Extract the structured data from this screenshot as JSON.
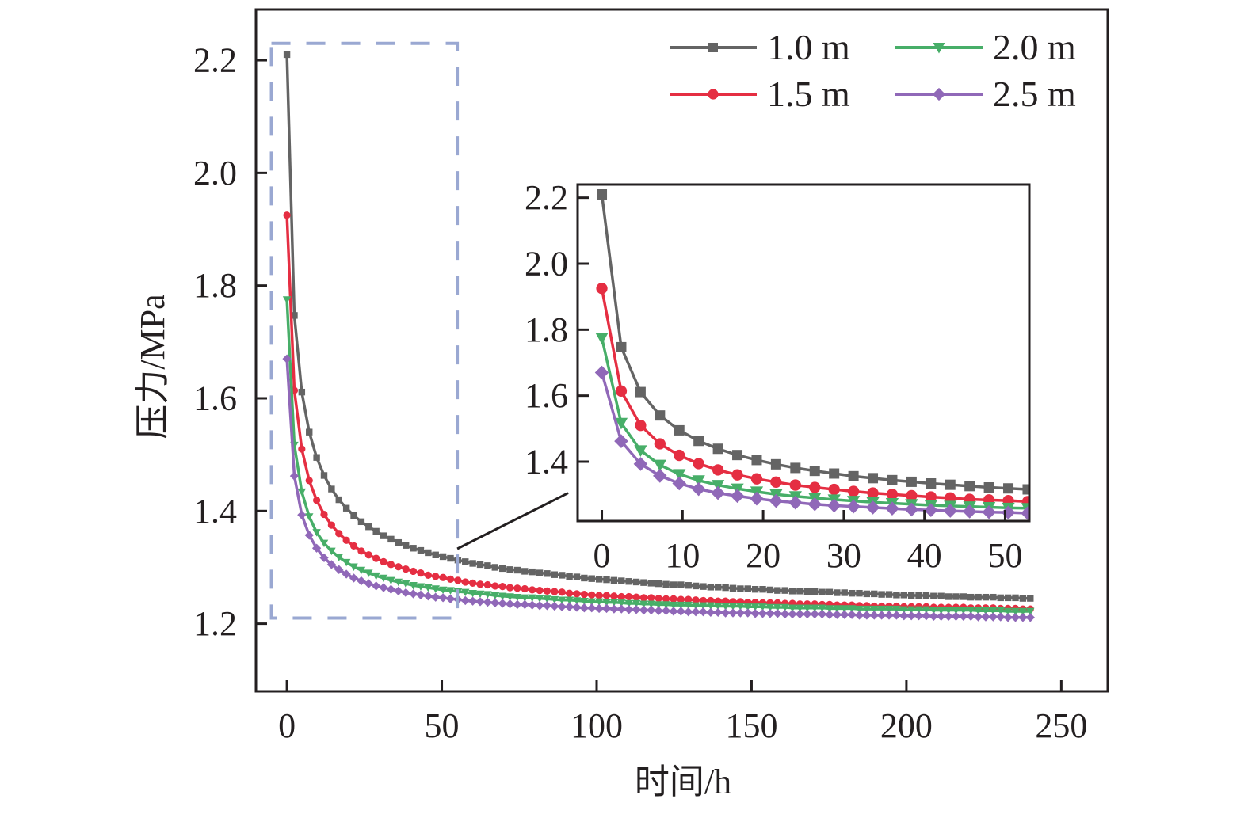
{
  "chart_data": {
    "type": "line",
    "title": "",
    "xlabel": "时间/h",
    "ylabel": "压力/MPa",
    "xlim": [
      -10,
      265
    ],
    "ylim": [
      1.08,
      2.29
    ],
    "xticks": [
      0,
      50,
      100,
      150,
      200,
      250
    ],
    "yticks": [
      1.2,
      1.4,
      1.6,
      1.8,
      2.0,
      2.2
    ],
    "xtick_labels": [
      "0",
      "50",
      "100",
      "150",
      "200",
      "250"
    ],
    "ytick_labels": [
      "1.2",
      "1.4",
      "1.6",
      "1.8",
      "2.0",
      "2.2"
    ],
    "grid": false,
    "legend_position": "top-right",
    "x": [
      0,
      2.4,
      4.8,
      7.2,
      9.6,
      12,
      14.4,
      16.8,
      19.2,
      21.6,
      24,
      26.4,
      28.8,
      31.2,
      33.6,
      36,
      38.4,
      40.8,
      43.2,
      45.6,
      48,
      50.4,
      52.8,
      55.2,
      57.6,
      60,
      62.4,
      64.8,
      67.2,
      69.6,
      72,
      74.4,
      76.8,
      79.2,
      81.6,
      84,
      86.4,
      88.8,
      91.2,
      93.6,
      96,
      98.4,
      100.8,
      103.2,
      105.6,
      108,
      110.4,
      112.8,
      115.2,
      117.6,
      120,
      122.4,
      124.8,
      127.2,
      129.6,
      132,
      134.4,
      136.8,
      139.2,
      141.6,
      144,
      146.4,
      148.8,
      151.2,
      153.6,
      156,
      158.4,
      160.8,
      163.2,
      165.6,
      168,
      170.4,
      172.8,
      175.2,
      177.6,
      180,
      182.4,
      184.8,
      187.2,
      189.6,
      192,
      194.4,
      196.8,
      199.2,
      201.6,
      204,
      206.4,
      208.8,
      211.2,
      213.6,
      216,
      218.4,
      220.8,
      223.2,
      225.6,
      228,
      230.4,
      232.8,
      235.2,
      237.6,
      240
    ],
    "series": [
      {
        "name": "1.0 m",
        "color": "#646464",
        "marker": "square",
        "values": [
          2.21,
          1.747,
          1.611,
          1.54,
          1.495,
          1.463,
          1.439,
          1.42,
          1.405,
          1.392,
          1.381,
          1.372,
          1.364,
          1.356,
          1.35,
          1.344,
          1.339,
          1.334,
          1.33,
          1.326,
          1.322,
          1.319,
          1.316,
          1.313,
          1.31,
          1.307,
          1.305,
          1.303,
          1.3,
          1.298,
          1.296,
          1.295,
          1.293,
          1.292,
          1.29,
          1.289,
          1.287,
          1.286,
          1.284,
          1.283,
          1.281,
          1.28,
          1.279,
          1.278,
          1.277,
          1.276,
          1.275,
          1.274,
          1.273,
          1.272,
          1.271,
          1.27,
          1.269,
          1.269,
          1.268,
          1.267,
          1.266,
          1.265,
          1.265,
          1.264,
          1.263,
          1.262,
          1.262,
          1.261,
          1.261,
          1.26,
          1.259,
          1.259,
          1.258,
          1.258,
          1.257,
          1.257,
          1.256,
          1.256,
          1.255,
          1.255,
          1.254,
          1.254,
          1.253,
          1.253,
          1.252,
          1.252,
          1.251,
          1.251,
          1.25,
          1.25,
          1.25,
          1.249,
          1.249,
          1.248,
          1.248,
          1.248,
          1.247,
          1.247,
          1.247,
          1.247,
          1.246,
          1.246,
          1.246,
          1.245,
          1.245
        ]
      },
      {
        "name": "1.5 m",
        "color": "#e52e42",
        "marker": "circle",
        "values": [
          1.925,
          1.614,
          1.51,
          1.454,
          1.419,
          1.394,
          1.375,
          1.36,
          1.348,
          1.338,
          1.329,
          1.322,
          1.316,
          1.31,
          1.305,
          1.301,
          1.297,
          1.293,
          1.29,
          1.286,
          1.284,
          1.282,
          1.279,
          1.277,
          1.274,
          1.272,
          1.27,
          1.269,
          1.267,
          1.266,
          1.264,
          1.263,
          1.262,
          1.26,
          1.259,
          1.258,
          1.257,
          1.256,
          1.254,
          1.253,
          1.252,
          1.251,
          1.25,
          1.25,
          1.249,
          1.248,
          1.248,
          1.247,
          1.246,
          1.246,
          1.245,
          1.244,
          1.244,
          1.243,
          1.243,
          1.242,
          1.241,
          1.241,
          1.24,
          1.24,
          1.239,
          1.239,
          1.238,
          1.238,
          1.237,
          1.237,
          1.237,
          1.236,
          1.236,
          1.235,
          1.235,
          1.235,
          1.234,
          1.234,
          1.233,
          1.233,
          1.233,
          1.232,
          1.232,
          1.231,
          1.231,
          1.231,
          1.231,
          1.23,
          1.23,
          1.23,
          1.23,
          1.229,
          1.229,
          1.229,
          1.229,
          1.229,
          1.228,
          1.228,
          1.228,
          1.228,
          1.227,
          1.227,
          1.227,
          1.226,
          1.226
        ]
      },
      {
        "name": "2.0 m",
        "color": "#47ae68",
        "marker": "triangle-down",
        "values": [
          1.775,
          1.517,
          1.434,
          1.39,
          1.362,
          1.343,
          1.329,
          1.318,
          1.309,
          1.301,
          1.295,
          1.29,
          1.285,
          1.281,
          1.277,
          1.274,
          1.271,
          1.268,
          1.266,
          1.264,
          1.262,
          1.26,
          1.259,
          1.257,
          1.256,
          1.254,
          1.253,
          1.252,
          1.25,
          1.249,
          1.248,
          1.247,
          1.246,
          1.246,
          1.245,
          1.244,
          1.243,
          1.242,
          1.242,
          1.241,
          1.24,
          1.239,
          1.239,
          1.238,
          1.238,
          1.237,
          1.236,
          1.236,
          1.235,
          1.235,
          1.234,
          1.234,
          1.233,
          1.233,
          1.233,
          1.232,
          1.232,
          1.232,
          1.231,
          1.231,
          1.231,
          1.231,
          1.23,
          1.23,
          1.23,
          1.229,
          1.229,
          1.229,
          1.228,
          1.228,
          1.228,
          1.228,
          1.228,
          1.227,
          1.227,
          1.227,
          1.227,
          1.226,
          1.226,
          1.226,
          1.226,
          1.226,
          1.226,
          1.225,
          1.225,
          1.225,
          1.225,
          1.224,
          1.224,
          1.224,
          1.224,
          1.224,
          1.224,
          1.223,
          1.223,
          1.223,
          1.223,
          1.222,
          1.222,
          1.222,
          1.222
        ]
      },
      {
        "name": "2.5 m",
        "color": "#9068b8",
        "marker": "diamond",
        "values": [
          1.67,
          1.462,
          1.393,
          1.357,
          1.334,
          1.317,
          1.305,
          1.296,
          1.288,
          1.281,
          1.276,
          1.271,
          1.267,
          1.264,
          1.261,
          1.258,
          1.255,
          1.253,
          1.251,
          1.249,
          1.247,
          1.246,
          1.244,
          1.243,
          1.241,
          1.24,
          1.239,
          1.238,
          1.237,
          1.236,
          1.235,
          1.234,
          1.234,
          1.233,
          1.232,
          1.232,
          1.231,
          1.23,
          1.23,
          1.229,
          1.228,
          1.228,
          1.227,
          1.227,
          1.226,
          1.226,
          1.225,
          1.225,
          1.224,
          1.224,
          1.223,
          1.223,
          1.222,
          1.222,
          1.221,
          1.221,
          1.221,
          1.22,
          1.22,
          1.219,
          1.219,
          1.219,
          1.219,
          1.218,
          1.218,
          1.218,
          1.218,
          1.217,
          1.217,
          1.217,
          1.217,
          1.217,
          1.217,
          1.216,
          1.216,
          1.216,
          1.216,
          1.215,
          1.215,
          1.215,
          1.215,
          1.215,
          1.215,
          1.214,
          1.214,
          1.214,
          1.214,
          1.213,
          1.213,
          1.213,
          1.213,
          1.213,
          1.213,
          1.212,
          1.212,
          1.212,
          1.212,
          1.211,
          1.211,
          1.211,
          1.211
        ]
      }
    ],
    "zoom_region": {
      "xlim": [
        -5,
        55
      ],
      "ylim": [
        1.21,
        2.23
      ],
      "style": "dashed",
      "color": "#9aa8d2"
    },
    "inset": {
      "xlim": [
        -3,
        53
      ],
      "ylim": [
        1.22,
        2.24
      ],
      "xticks": [
        0,
        10,
        20,
        30,
        40,
        50
      ],
      "yticks": [
        1.4,
        1.6,
        1.8,
        2.0,
        2.2
      ],
      "xtick_labels": [
        "0",
        "10",
        "20",
        "30",
        "40",
        "50"
      ],
      "ytick_labels": [
        "1.4",
        "1.6",
        "1.8",
        "2.0",
        "2.2"
      ],
      "x_max_shown": 53
    }
  }
}
